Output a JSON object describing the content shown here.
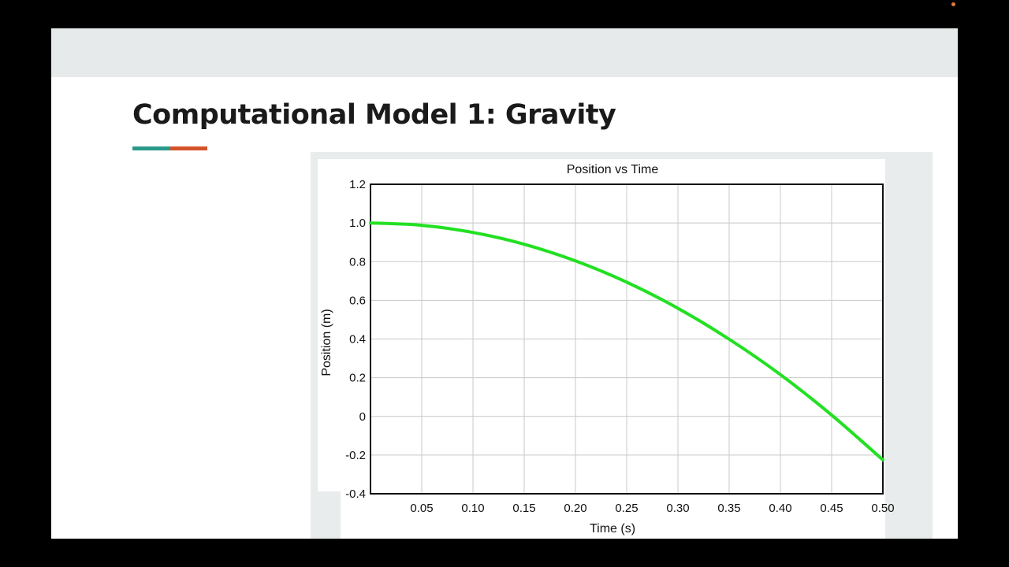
{
  "slide": {
    "title": "Computational Model 1: Gravity",
    "accent_colors": [
      "#2a9a8a",
      "#d4532a"
    ]
  },
  "chart_data": {
    "type": "line",
    "title": "Position vs Time",
    "xlabel": "Time (s)",
    "ylabel": "Position (m)",
    "xlim": [
      0,
      0.5
    ],
    "ylim": [
      -0.4,
      1.2
    ],
    "x_ticks": [
      "0.05",
      "0.10",
      "0.15",
      "0.20",
      "0.25",
      "0.30",
      "0.35",
      "0.40",
      "0.45",
      "0.50"
    ],
    "x_tick_values": [
      0.05,
      0.1,
      0.15,
      0.2,
      0.25,
      0.3,
      0.35,
      0.4,
      0.45,
      0.5
    ],
    "y_ticks": [
      "1.2",
      "1.0",
      "0.8",
      "0.6",
      "0.4",
      "0.2",
      "0",
      "-0.2",
      "-0.4"
    ],
    "y_tick_values": [
      1.2,
      1.0,
      0.8,
      0.6,
      0.4,
      0.2,
      0,
      -0.2,
      -0.4
    ],
    "grid": true,
    "line_color": "#22e022",
    "series": [
      {
        "x": [
          0,
          0.05,
          0.1,
          0.15,
          0.2,
          0.25,
          0.3,
          0.35,
          0.4,
          0.45,
          0.5
        ],
        "values": [
          1.0,
          0.988,
          0.951,
          0.89,
          0.804,
          0.694,
          0.559,
          0.399,
          0.216,
          0.007,
          -0.225
        ]
      }
    ]
  }
}
